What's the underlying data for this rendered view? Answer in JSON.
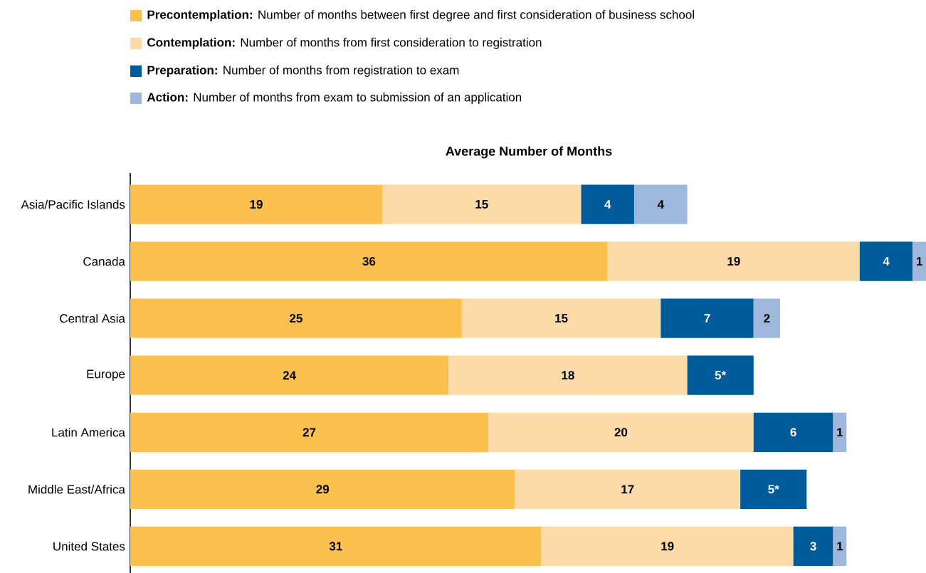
{
  "chart_data": {
    "type": "bar",
    "orientation": "horizontal",
    "stacked": true,
    "title": "Average Number of Months",
    "categories": [
      "Asia/Pacific Islands",
      "Canada",
      "Central Asia",
      "Europe",
      "Latin America",
      "Middle East/Africa",
      "United States"
    ],
    "series": [
      {
        "name": "**Precontemplation:** Number of months between first degree and first consideration of business school",
        "color": "#fcc04f",
        "values": [
          19,
          36,
          25,
          24,
          27,
          29,
          31
        ],
        "value_labels": [
          "19",
          "36",
          "25",
          "24",
          "27",
          "29",
          "31"
        ]
      },
      {
        "name": "**Contemplation:** Number of months from first consideration to registration",
        "color": "#fddba8",
        "values": [
          15,
          19,
          15,
          18,
          20,
          17,
          19
        ],
        "value_labels": [
          "15",
          "19",
          "15",
          "18",
          "20",
          "17",
          "19"
        ]
      },
      {
        "name": "**Preparation:** Number of months from registration to exam",
        "color": "#005b9a",
        "values": [
          4,
          4,
          7,
          5,
          6,
          5,
          3
        ],
        "value_labels": [
          "4",
          "4",
          "7",
          "5*",
          "6",
          "5*",
          "3"
        ]
      },
      {
        "name": "**Action:** Number of months from exam to submission of an application",
        "color": "#9db8dc",
        "values": [
          4,
          1,
          2,
          null,
          1,
          null,
          1
        ],
        "value_labels": [
          "4",
          "1",
          "2",
          null,
          "1",
          null,
          "1"
        ]
      }
    ],
    "legend": "top",
    "tick_labels": "y"
  }
}
